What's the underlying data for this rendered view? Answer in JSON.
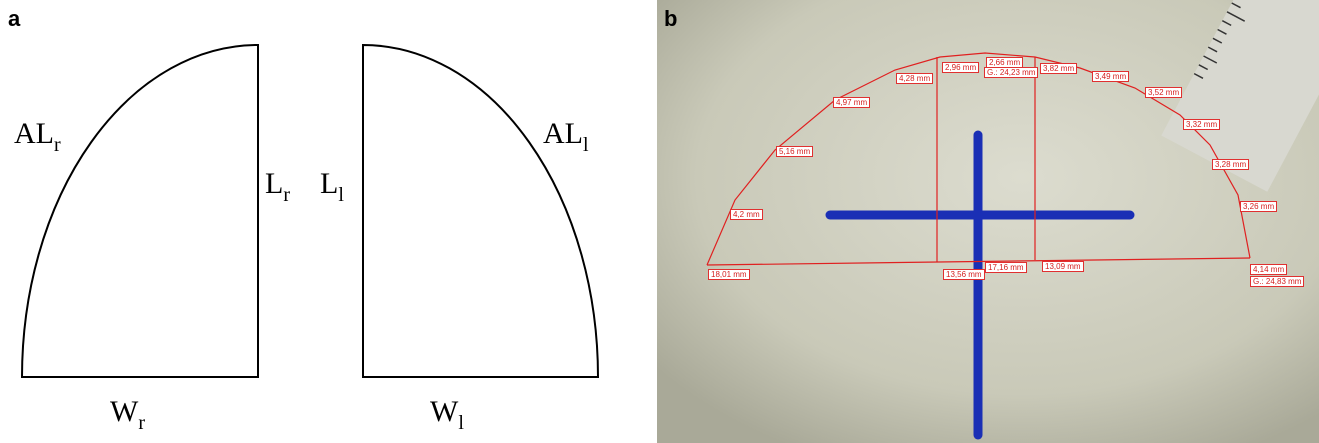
{
  "panel_a": {
    "label": "a",
    "right_shape": {
      "arc": {
        "main": "AL",
        "sub": "r"
      },
      "side": {
        "main": "L",
        "sub": "r"
      },
      "base": {
        "main": "W",
        "sub": "r"
      }
    },
    "left_shape": {
      "arc": {
        "main": "AL",
        "sub": "l"
      },
      "side": {
        "main": "L",
        "sub": "l"
      },
      "base": {
        "main": "W",
        "sub": "l"
      }
    }
  },
  "panel_b": {
    "label": "b",
    "measurements": [
      "2,96 mm",
      "2,66 mm",
      "G.: 24,23 mm",
      "3,82 mm",
      "4,28 mm",
      "3,49 mm",
      "3,52 mm",
      "4,97 mm",
      "3,32 mm",
      "5,16 mm",
      "3,28 mm",
      "3,26 mm",
      "4,2 mm",
      "18,01 mm",
      "13,56 mm",
      "17,16 mm",
      "13,09 mm",
      "4,14 mm",
      "G.: 24,83 mm"
    ]
  }
}
